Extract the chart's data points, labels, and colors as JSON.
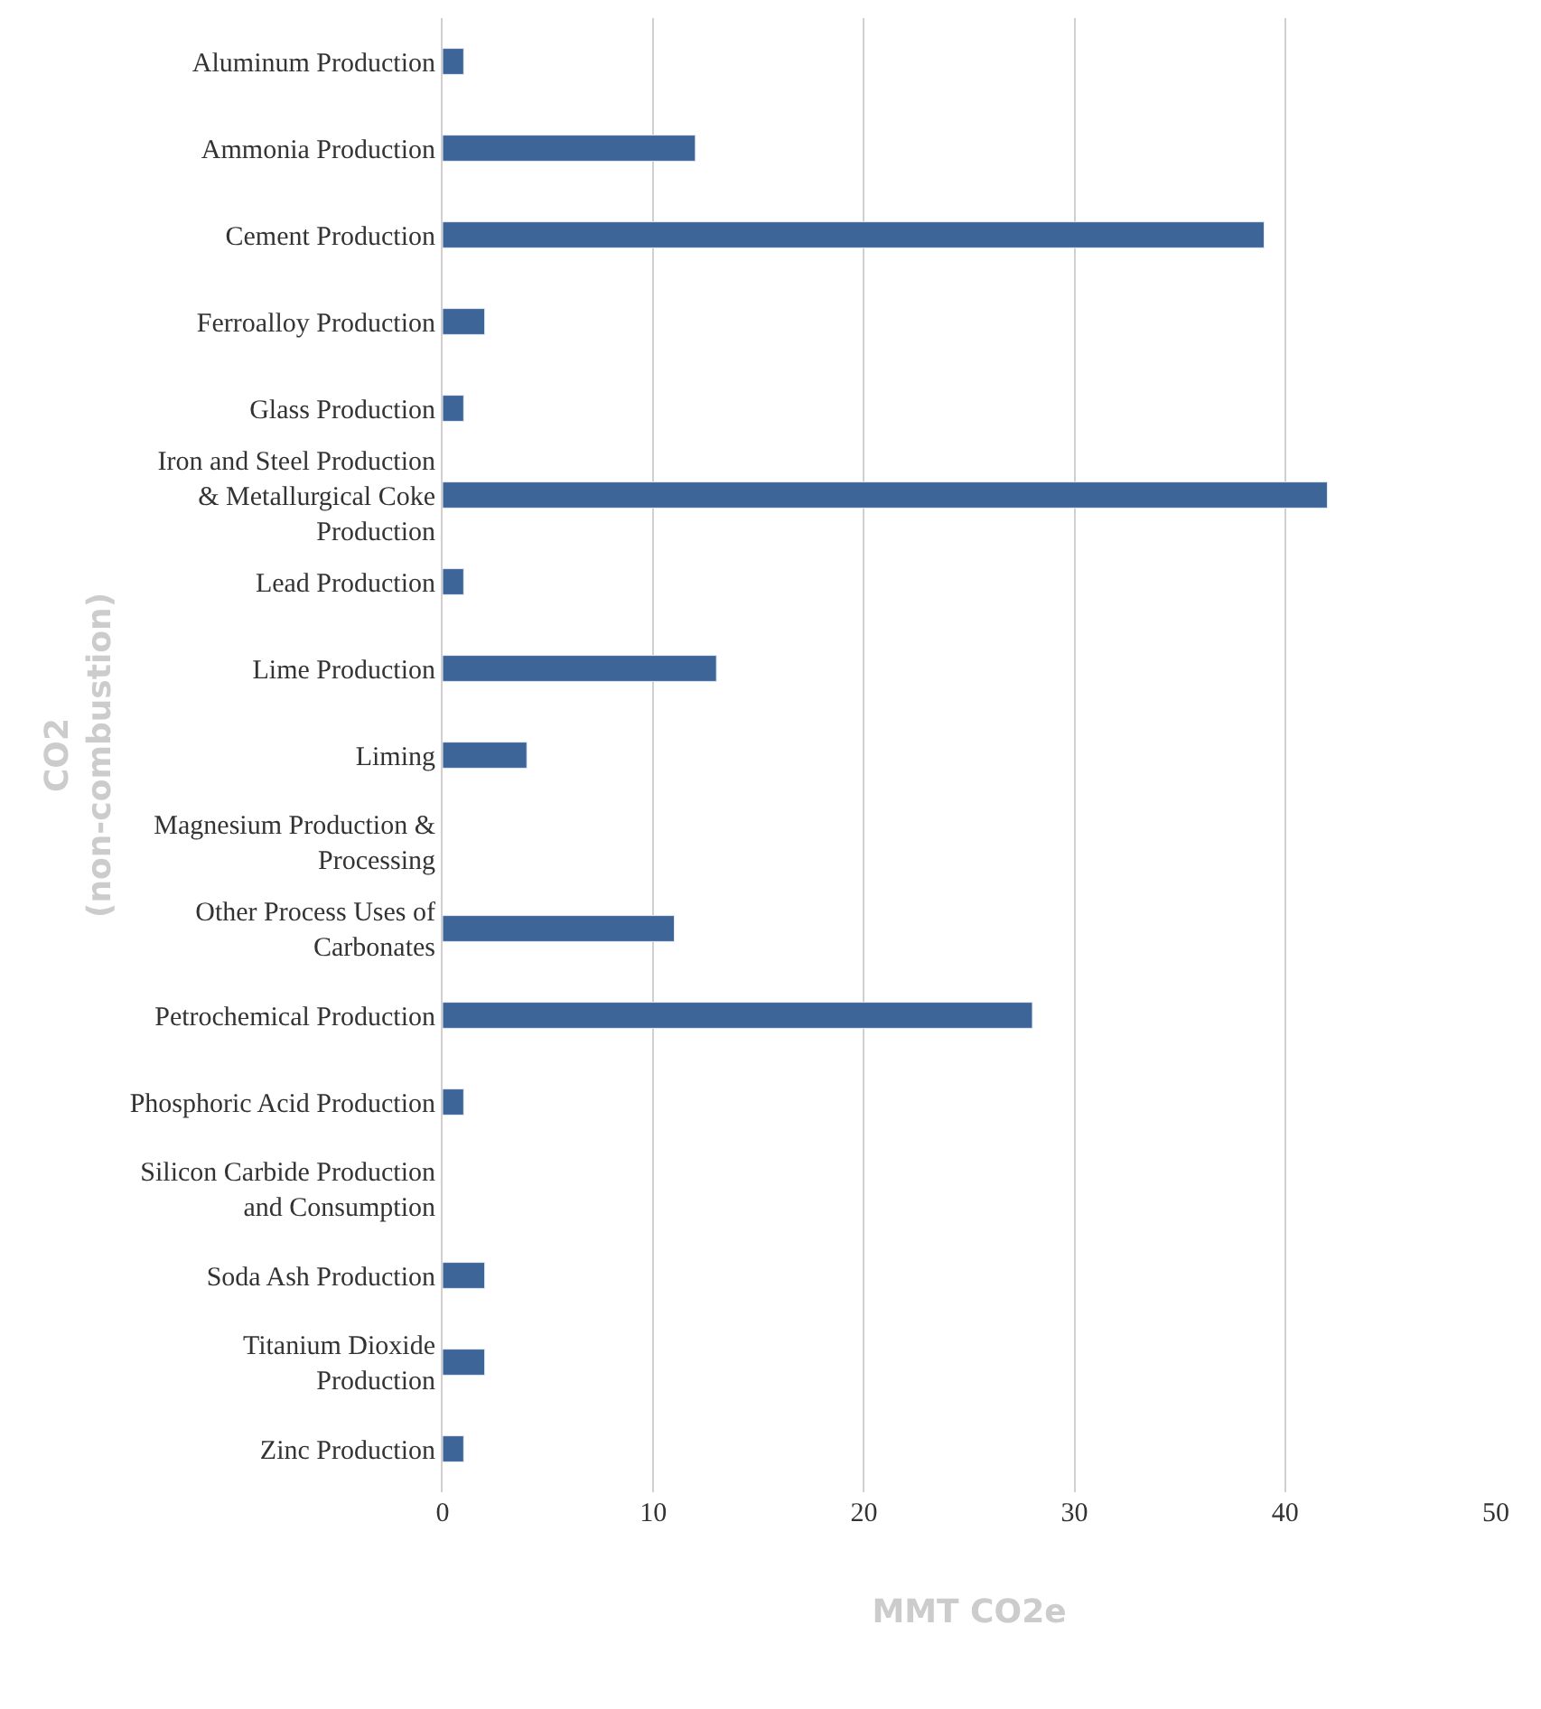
{
  "chart_data": {
    "type": "bar",
    "orientation": "horizontal",
    "xlabel": "MMT CO2e",
    "ylabel": "CO2\n(non-combustion)",
    "categories": [
      "Aluminum Production",
      "Ammonia Production",
      "Cement Production",
      "Ferroalloy Production",
      "Glass Production",
      "Iron and Steel Production & Metallurgical Coke Production",
      "Lead Production",
      "Lime Production",
      "Liming",
      "Magnesium Production & Processing",
      "Other Process Uses of Carbonates",
      "Petrochemical Production",
      "Phosphoric Acid Production",
      "Silicon Carbide Production and Consumption",
      "Soda Ash Production",
      "Titanium Dioxide Production",
      "Zinc Production"
    ],
    "values": [
      1,
      12,
      39,
      2,
      1,
      42,
      1,
      13,
      4,
      null,
      11,
      28,
      1,
      null,
      2,
      2,
      1
    ],
    "color": "#3d6597",
    "xlim": [
      0,
      50
    ],
    "xticks": [
      0,
      10,
      20,
      30,
      40,
      50
    ],
    "grid": "x",
    "legend": false
  }
}
